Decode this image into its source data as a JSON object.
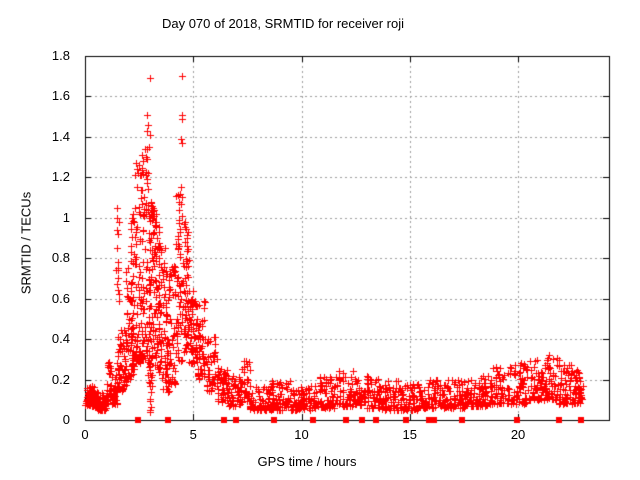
{
  "chart_data": {
    "type": "scatter",
    "title": "Day 070 of 2018, SRMTID for receiver roji",
    "xlabel": "GPS time / hours",
    "ylabel": "SRMTID / TECUs",
    "xlim": [
      0,
      24.2
    ],
    "ylim": [
      0,
      1.8
    ],
    "xticks": [
      0,
      5,
      10,
      15,
      20
    ],
    "xtick_labels": [
      "0",
      "5",
      "10",
      "15",
      "20"
    ],
    "yticks": [
      0,
      0.2,
      0.4,
      0.6,
      0.8,
      1,
      1.2,
      1.4,
      1.6,
      1.8
    ],
    "ytick_labels": [
      "0",
      "0.2",
      "0.4",
      "0.6",
      "0.8",
      "1",
      "1.2",
      "1.4",
      "1.6",
      "1.8"
    ],
    "grid": "dotted-gray-at-major-ticks",
    "grid_color": "#9e9e9e",
    "frame_color": "#000000",
    "background": "#ffffff",
    "series": [
      {
        "name": "srmtid-values",
        "marker": "plus",
        "color": "#ff0000",
        "seed": 1234567,
        "peak_points": [
          [
            2.99,
            1.69
          ],
          [
            4.5,
            1.7
          ],
          [
            2.85,
            1.51
          ],
          [
            2.91,
            1.46
          ],
          [
            2.85,
            1.43
          ],
          [
            2.99,
            1.41
          ],
          [
            4.47,
            1.51
          ],
          [
            4.5,
            1.49
          ],
          [
            4.42,
            1.39
          ],
          [
            4.47,
            1.37
          ],
          [
            2.88,
            1.29
          ],
          [
            2.35,
            1.27
          ],
          [
            2.44,
            1.22
          ],
          [
            2.85,
            1.19
          ],
          [
            2.62,
            1.31
          ],
          [
            2.6,
            1.21
          ],
          [
            4.45,
            1.15
          ],
          [
            4.4,
            1.12
          ],
          [
            4.33,
            1.08
          ],
          [
            4.36,
            1.04
          ],
          [
            2.3,
            1.05
          ],
          [
            2.21,
            1.02
          ],
          [
            2.25,
            0.98
          ],
          [
            3.02,
            1.0
          ],
          [
            3.06,
            1.03
          ],
          [
            3.1,
            0.99
          ],
          [
            3.13,
            1.05
          ],
          [
            3.17,
            1.01
          ],
          [
            3.2,
            1.04
          ],
          [
            3.08,
            1.06
          ],
          [
            1.5,
            1.05
          ],
          [
            1.47,
            1.0
          ],
          [
            1.55,
            0.98
          ],
          [
            1.52,
            0.92
          ],
          [
            1.49,
            0.85
          ],
          [
            1.51,
            0.78
          ],
          [
            1.53,
            0.7
          ],
          [
            2.33,
            1.21
          ],
          [
            2.48,
            1.26
          ],
          [
            2.95,
            1.35
          ],
          [
            2.93,
            1.22
          ],
          [
            3.28,
            1.02
          ],
          [
            3.3,
            0.98
          ],
          [
            21.45,
            0.32
          ],
          [
            21.6,
            0.3
          ],
          [
            20.8,
            0.29
          ]
        ],
        "bands": [
          [
            0.02,
            0.5,
            60,
            0.07,
            0.18,
            1.6
          ],
          [
            0.5,
            1.0,
            60,
            0.05,
            0.14,
            1.4
          ],
          [
            1.0,
            1.5,
            55,
            0.08,
            0.3,
            2.0
          ],
          [
            1.4,
            1.6,
            8,
            0.55,
            0.95,
            1.0
          ],
          [
            1.5,
            1.9,
            55,
            0.14,
            0.45,
            1.6
          ],
          [
            1.9,
            2.2,
            50,
            0.2,
            0.8,
            1.8
          ],
          [
            2.1,
            2.35,
            45,
            0.25,
            1.0,
            1.7
          ],
          [
            2.35,
            2.6,
            50,
            0.28,
            1.25,
            1.7
          ],
          [
            2.6,
            2.9,
            60,
            0.3,
            1.4,
            1.6
          ],
          [
            2.9,
            3.15,
            65,
            0.18,
            1.08,
            1.2
          ],
          [
            2.98,
            3.1,
            12,
            0.03,
            0.35,
            1.0
          ],
          [
            3.15,
            3.45,
            65,
            0.22,
            1.02,
            1.3
          ],
          [
            3.45,
            3.8,
            55,
            0.15,
            0.85,
            1.4
          ],
          [
            3.7,
            3.9,
            12,
            0.08,
            0.4,
            1.0
          ],
          [
            3.8,
            4.2,
            50,
            0.18,
            0.78,
            1.5
          ],
          [
            4.2,
            4.5,
            50,
            0.28,
            1.12,
            1.5
          ],
          [
            4.5,
            4.8,
            55,
            0.32,
            0.98,
            1.2
          ],
          [
            4.8,
            5.2,
            55,
            0.28,
            0.75,
            1.4
          ],
          [
            5.2,
            5.6,
            45,
            0.2,
            0.6,
            1.4
          ],
          [
            5.6,
            6.1,
            45,
            0.14,
            0.42,
            1.5
          ],
          [
            6.1,
            6.6,
            40,
            0.09,
            0.28,
            1.5
          ],
          [
            6.6,
            7.2,
            45,
            0.07,
            0.22,
            1.4
          ],
          [
            7.2,
            7.6,
            30,
            0.09,
            0.3,
            1.6
          ],
          [
            7.6,
            8.6,
            70,
            0.05,
            0.17,
            1.5
          ],
          [
            8.6,
            9.6,
            70,
            0.05,
            0.2,
            1.8
          ],
          [
            9.6,
            10.6,
            70,
            0.05,
            0.17,
            1.5
          ],
          [
            10.6,
            11.6,
            70,
            0.06,
            0.22,
            1.8
          ],
          [
            11.6,
            12.6,
            70,
            0.07,
            0.25,
            1.8
          ],
          [
            12.6,
            13.6,
            70,
            0.06,
            0.22,
            1.8
          ],
          [
            13.6,
            14.6,
            70,
            0.05,
            0.2,
            1.8
          ],
          [
            14.6,
            15.6,
            70,
            0.05,
            0.18,
            1.5
          ],
          [
            15.6,
            16.6,
            70,
            0.06,
            0.2,
            1.8
          ],
          [
            16.6,
            17.6,
            70,
            0.06,
            0.2,
            1.8
          ],
          [
            17.6,
            18.6,
            70,
            0.07,
            0.22,
            1.8
          ],
          [
            18.6,
            19.6,
            70,
            0.08,
            0.26,
            1.8
          ],
          [
            19.6,
            20.4,
            60,
            0.08,
            0.28,
            1.8
          ],
          [
            20.4,
            21.2,
            60,
            0.1,
            0.3,
            1.8
          ],
          [
            21.2,
            21.9,
            55,
            0.1,
            0.33,
            1.8
          ],
          [
            21.9,
            22.5,
            50,
            0.08,
            0.28,
            1.8
          ],
          [
            22.5,
            23.0,
            45,
            0.08,
            0.25,
            1.5
          ]
        ]
      },
      {
        "name": "zero-level-flags",
        "marker": "filled-square",
        "color": "#ff0000",
        "y": 0,
        "x": [
          2.45,
          3.82,
          6.43,
          6.97,
          8.75,
          10.55,
          12.05,
          12.78,
          13.42,
          14.82,
          15.9,
          16.12,
          17.4,
          19.97,
          21.9,
          22.9
        ]
      }
    ]
  }
}
